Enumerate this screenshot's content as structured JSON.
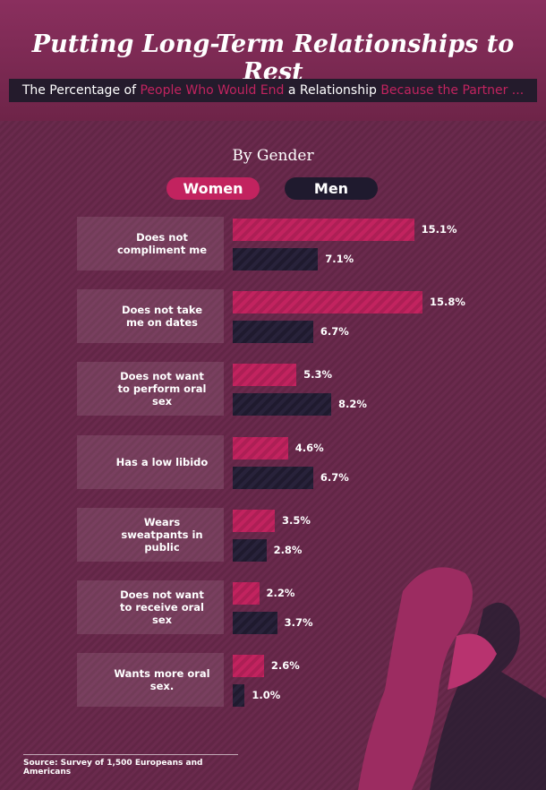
{
  "chart_data": {
    "type": "bar",
    "orientation": "horizontal",
    "title": "Putting Long-Term Relationships to Rest",
    "subtitle_parts": [
      "The Percentage of ",
      "People Who Would End",
      " a Relationship ",
      "Because the Partner ..."
    ],
    "section_title": "By Gender",
    "categories": [
      "Does not compliment me",
      "Does not take me on dates",
      "Does not want to perform oral sex",
      "Has a low libido",
      "Wears sweatpants in public",
      "Does not want to receive oral sex",
      "Wants more oral sex."
    ],
    "series": [
      {
        "name": "Women",
        "color": "#c2235f",
        "values": [
          15.1,
          15.8,
          5.3,
          4.6,
          3.5,
          2.2,
          2.6
        ],
        "value_labels": [
          "15.1%",
          "15.8%",
          "5.3%",
          "4.6%",
          "3.5%",
          "2.2%",
          "2.6%"
        ]
      },
      {
        "name": "Men",
        "color": "#1f1a2e",
        "values": [
          7.1,
          6.7,
          8.2,
          6.7,
          2.8,
          3.7,
          1.0
        ],
        "value_labels": [
          "7.1%",
          "6.7%",
          "8.2%",
          "6.7%",
          "2.8%",
          "3.7%",
          "1.0%"
        ]
      }
    ],
    "source": "Source: Survey of 1,500 Europeans and Americans"
  }
}
